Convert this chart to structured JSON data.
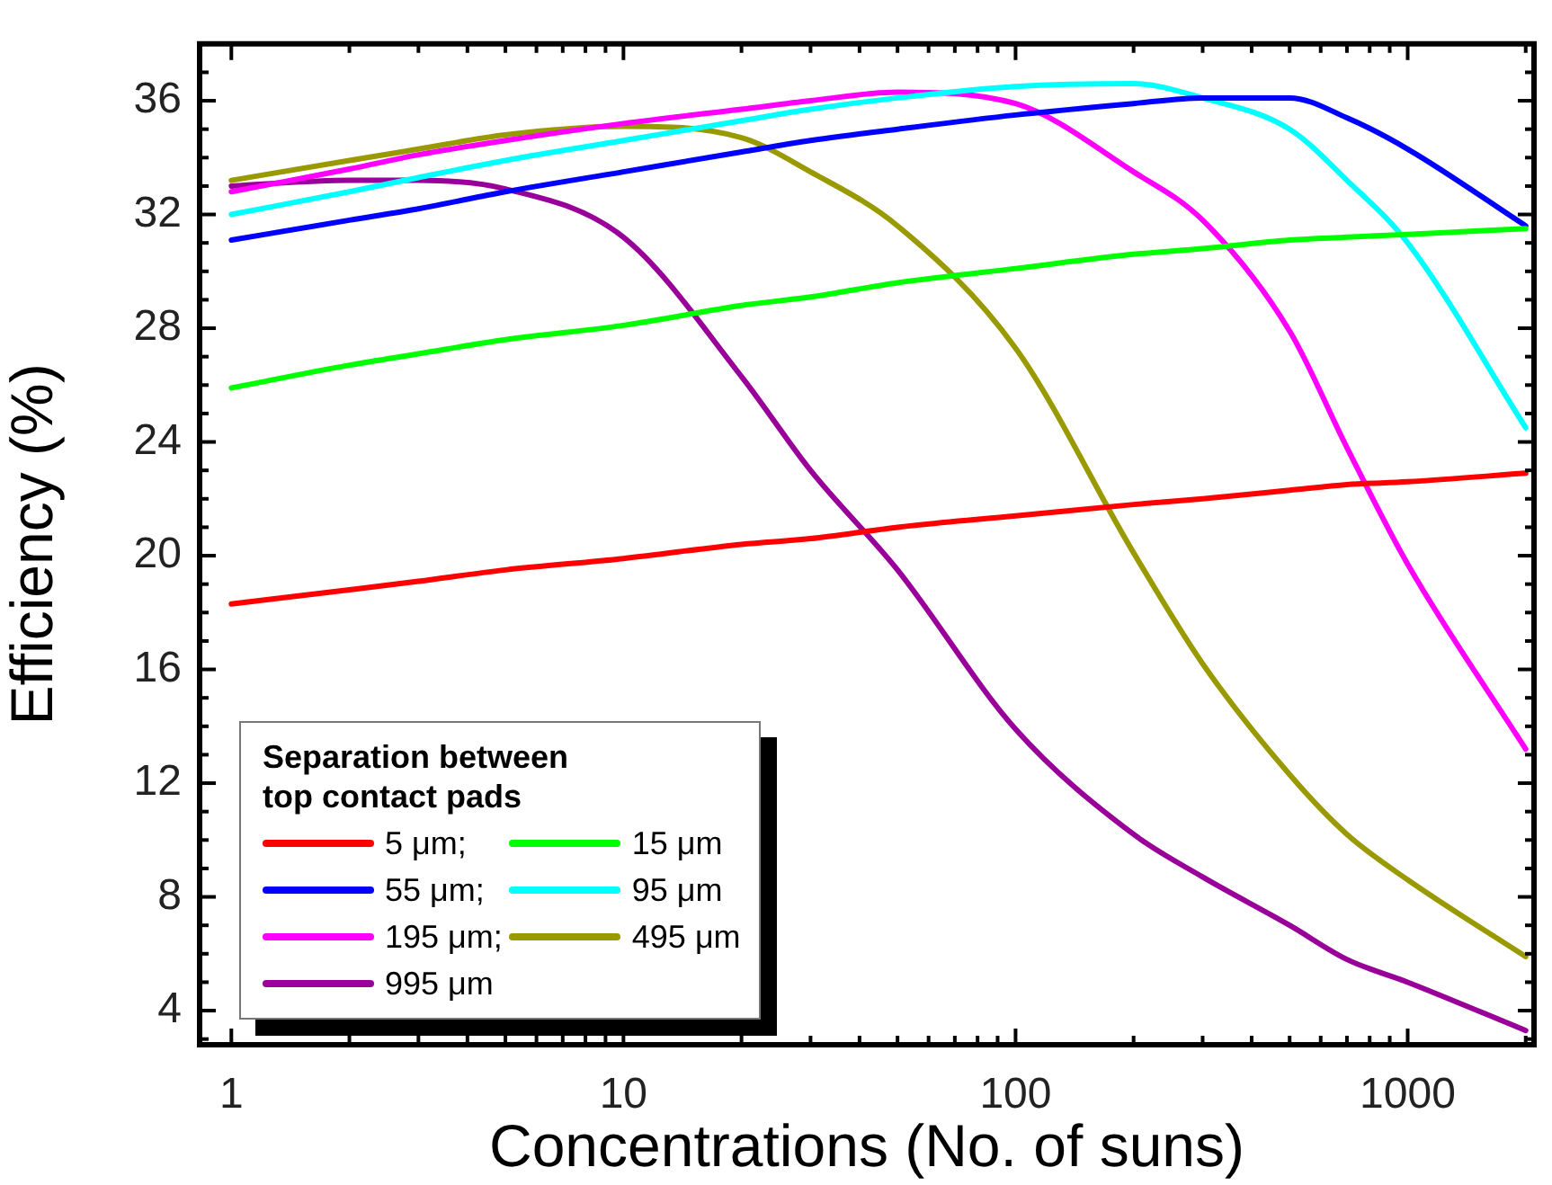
{
  "chart_data": {
    "type": "line",
    "xlabel": "Concentrations (No. of suns)",
    "ylabel": "Efficiency (%)",
    "legend_title": "Separation between top contact pads",
    "legend": "bottom left",
    "log": "x",
    "grid": false,
    "marker": "none",
    "line_style": "solid",
    "xlim": [
      0.83,
      2100
    ],
    "ylim": [
      2.8,
      38
    ],
    "xticks": [
      1,
      {
        "value": 2,
        "label": null
      },
      {
        "value": 3,
        "label": null
      },
      {
        "value": 4,
        "label": null
      },
      {
        "value": 5,
        "label": null
      },
      {
        "value": 6,
        "label": null
      },
      {
        "value": 7,
        "label": null
      },
      {
        "value": 8,
        "label": null
      },
      {
        "value": 9,
        "label": null
      },
      10,
      {
        "value": 20,
        "label": null
      },
      {
        "value": 30,
        "label": null
      },
      {
        "value": 40,
        "label": null
      },
      {
        "value": 50,
        "label": null
      },
      {
        "value": 60,
        "label": null
      },
      {
        "value": 70,
        "label": null
      },
      {
        "value": 80,
        "label": null
      },
      {
        "value": 90,
        "label": null
      },
      100,
      {
        "value": 200,
        "label": null
      },
      {
        "value": 300,
        "label": null
      },
      {
        "value": 400,
        "label": null
      },
      {
        "value": 500,
        "label": null
      },
      {
        "value": 600,
        "label": null
      },
      {
        "value": 700,
        "label": null
      },
      {
        "value": 800,
        "label": null
      },
      {
        "value": 900,
        "label": null
      },
      1000,
      {
        "value": 2000,
        "label": null
      }
    ],
    "yticks": [
      {
        "value": 3,
        "label": null
      },
      4,
      {
        "value": 5,
        "label": null
      },
      {
        "value": 6,
        "label": null
      },
      {
        "value": 7,
        "label": null
      },
      8,
      {
        "value": 9,
        "label": null
      },
      {
        "value": 10,
        "label": null
      },
      {
        "value": 11,
        "label": null
      },
      12,
      {
        "value": 13,
        "label": null
      },
      {
        "value": 14,
        "label": null
      },
      {
        "value": 15,
        "label": null
      },
      16,
      {
        "value": 17,
        "label": null
      },
      {
        "value": 18,
        "label": null
      },
      {
        "value": 19,
        "label": null
      },
      20,
      {
        "value": 21,
        "label": null
      },
      {
        "value": 22,
        "label": null
      },
      {
        "value": 23,
        "label": null
      },
      24,
      {
        "value": 25,
        "label": null
      },
      {
        "value": 26,
        "label": null
      },
      {
        "value": 27,
        "label": null
      },
      28,
      {
        "value": 29,
        "label": null
      },
      {
        "value": 30,
        "label": null
      },
      {
        "value": 31,
        "label": null
      },
      32,
      {
        "value": 33,
        "label": null
      },
      {
        "value": 34,
        "label": null
      },
      {
        "value": 35,
        "label": null
      },
      36,
      {
        "value": 37,
        "label": null
      }
    ],
    "x": [
      1,
      2,
      3,
      5,
      10,
      20,
      30,
      50,
      100,
      200,
      300,
      500,
      700,
      1000,
      2000
    ],
    "series": [
      {
        "name": "5 μm;",
        "color": "#ff0000",
        "values": [
          18.3,
          18.8,
          19.1,
          19.5,
          19.9,
          20.4,
          20.6,
          21.0,
          21.4,
          21.8,
          22.0,
          22.3,
          22.5,
          22.6,
          22.9
        ]
      },
      {
        "name": "15 μm",
        "color": "#00ff00",
        "values": [
          25.9,
          26.7,
          27.1,
          27.6,
          28.1,
          28.8,
          29.1,
          29.6,
          30.1,
          30.6,
          30.8,
          31.1,
          31.2,
          31.3,
          31.5
        ]
      },
      {
        "name": "55 μm;",
        "color": "#0000ff",
        "values": [
          31.1,
          31.8,
          32.2,
          32.8,
          33.5,
          34.2,
          34.6,
          35.0,
          35.5,
          35.9,
          36.1,
          36.1,
          35.4,
          34.3,
          31.6
        ]
      },
      {
        "name": "95 μm",
        "color": "#00ffff",
        "values": [
          32.0,
          32.8,
          33.3,
          33.9,
          34.6,
          35.3,
          35.7,
          36.1,
          36.5,
          36.6,
          36.1,
          35.0,
          33.2,
          31.0,
          24.5
        ]
      },
      {
        "name": "195 μm;",
        "color": "#ff00ff",
        "values": [
          32.8,
          33.6,
          34.1,
          34.6,
          35.2,
          35.7,
          36.0,
          36.3,
          35.9,
          33.5,
          31.8,
          27.9,
          23.8,
          19.7,
          13.2
        ]
      },
      {
        "name": "495 μm",
        "color": "#999900",
        "values": [
          33.2,
          33.9,
          34.3,
          34.8,
          35.1,
          34.7,
          33.5,
          31.6,
          27.3,
          20.1,
          16.2,
          12.3,
          10.2,
          8.6,
          5.9
        ]
      },
      {
        "name": "995 μm",
        "color": "#990099",
        "values": [
          33.0,
          33.2,
          33.2,
          32.9,
          31.2,
          26.3,
          23.0,
          19.5,
          13.9,
          10.2,
          8.7,
          7.0,
          5.8,
          5.0,
          3.3
        ]
      }
    ]
  }
}
